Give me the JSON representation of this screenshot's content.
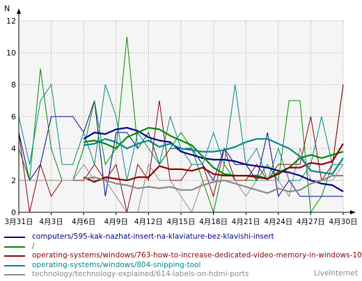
{
  "chart_data": {
    "type": "line",
    "ylabel": "N",
    "ylim": [
      0,
      12
    ],
    "yticks": [
      0,
      2,
      4,
      6,
      8,
      10,
      12
    ],
    "grid": true,
    "legend_position": "bottom",
    "xticks": [
      "3月31日",
      "4月3日",
      "4月6日",
      "4月9日",
      "4月12日",
      "4月15日",
      "4月18日",
      "4月21日",
      "4月24日",
      "4月27日",
      "4月30日"
    ],
    "x": [
      "3月31日",
      "4月1日",
      "4月2日",
      "4月3日",
      "4月4日",
      "4月5日",
      "4月6日",
      "4月7日",
      "4月8日",
      "4月9日",
      "4月10日",
      "4月11日",
      "4月12日",
      "4月13日",
      "4月14日",
      "4月15日",
      "4月16日",
      "4月17日",
      "4月18日",
      "4月19日",
      "4月20日",
      "4月21日",
      "4月22日",
      "4月23日",
      "4月24日",
      "4月25日",
      "4月26日",
      "4月27日",
      "4月28日",
      "4月29日",
      "4月30日"
    ],
    "series": [
      {
        "name": "computers/595-kak-nazhat-insert-na-klaviature-bez-klavishi-insert",
        "color": "#000088",
        "daily": [
          5,
          2,
          3,
          6,
          6,
          6,
          5,
          7,
          1,
          5,
          5,
          4,
          5,
          3,
          4,
          4,
          4,
          3,
          2,
          4,
          3,
          3,
          2,
          5,
          1,
          2,
          1,
          1,
          1,
          1,
          1
        ],
        "trend": [
          null,
          null,
          null,
          null,
          null,
          null,
          4.6,
          5.0,
          4.9,
          5.2,
          5.3,
          5.1,
          4.7,
          4.5,
          4.4,
          3.8,
          3.6,
          3.4,
          3.3,
          3.3,
          3.2,
          3.0,
          2.9,
          2.8,
          2.6,
          2.5,
          2.3,
          2.0,
          1.8,
          1.7,
          1.3
        ]
      },
      {
        "name": "/",
        "color": "#008800",
        "daily": [
          4,
          2,
          9,
          4,
          2,
          2,
          4,
          7,
          3,
          4,
          11,
          4,
          5,
          3,
          4,
          5,
          4,
          2,
          0,
          3,
          2,
          2,
          2,
          3,
          2,
          7,
          7,
          0,
          1,
          3,
          8
        ],
        "trend": [
          null,
          null,
          null,
          null,
          null,
          null,
          4.4,
          4.5,
          4.3,
          4.0,
          4.7,
          5.0,
          5.3,
          5.2,
          4.8,
          4.5,
          4.2,
          3.5,
          2.8,
          2.4,
          2.3,
          2.3,
          2.3,
          2.1,
          2.5,
          2.8,
          3.4,
          3.6,
          3.4,
          3.6,
          3.8
        ]
      },
      {
        "name": "operating-systems/windows/763-how-to-increase-dedicated-video-memory-in-windows-10",
        "color": "#880000",
        "daily": [
          5,
          0,
          3,
          1,
          2,
          2,
          2,
          3,
          2,
          3,
          0,
          3,
          2,
          7,
          2,
          2,
          3,
          3,
          1,
          4,
          2,
          2,
          3,
          2,
          3,
          3,
          3,
          6,
          2,
          3,
          8
        ],
        "trend": [
          null,
          null,
          null,
          null,
          null,
          null,
          2.2,
          1.9,
          2.2,
          2.1,
          2.0,
          2.2,
          2.2,
          2.9,
          2.7,
          2.7,
          2.6,
          2.8,
          2.4,
          2.3,
          2.3,
          2.3,
          2.2,
          2.1,
          2.4,
          2.8,
          2.8,
          3.1,
          3.0,
          3.2,
          4.3
        ]
      },
      {
        "name": "operating-systems/windows/804-snipping-tool",
        "color": "#008888",
        "daily": [
          6,
          3,
          7,
          8,
          3,
          3,
          5,
          3,
          8,
          6,
          2,
          5,
          4,
          3,
          6,
          4,
          3,
          3,
          5,
          3,
          8,
          3,
          4,
          2,
          4,
          2,
          2,
          3,
          6,
          3,
          3
        ],
        "trend": [
          null,
          null,
          null,
          null,
          null,
          null,
          4.2,
          4.3,
          4.6,
          4.4,
          4.0,
          4.3,
          4.5,
          4.1,
          4.3,
          4.0,
          3.9,
          3.8,
          3.8,
          3.9,
          4.1,
          4.4,
          4.6,
          4.6,
          4.3,
          4.0,
          3.5,
          2.6,
          2.5,
          2.4,
          3.4
        ]
      },
      {
        "name": "technology/technology-explained/614-labels-on-hdmi-ports",
        "color": "#888888",
        "daily": [
          2,
          2,
          2,
          2,
          2,
          2,
          3,
          2,
          2,
          1,
          0,
          0,
          3,
          2,
          2,
          1,
          0,
          2,
          2,
          2,
          2,
          1,
          2,
          2,
          2,
          1,
          4,
          2,
          2,
          2,
          3
        ],
        "trend": [
          null,
          null,
          null,
          null,
          null,
          null,
          2.1,
          2.2,
          2.0,
          1.8,
          1.7,
          1.5,
          1.6,
          1.5,
          1.6,
          1.4,
          1.4,
          1.7,
          1.9,
          2.0,
          1.8,
          1.6,
          1.4,
          1.2,
          1.5,
          1.3,
          1.4,
          1.8,
          2.0,
          2.3,
          2.3
        ]
      }
    ]
  },
  "footer": {
    "brand": "LiveInternet"
  },
  "colors": {
    "plot_background": "#f5f5f5",
    "axis": "#000000",
    "grid": "#999999"
  }
}
